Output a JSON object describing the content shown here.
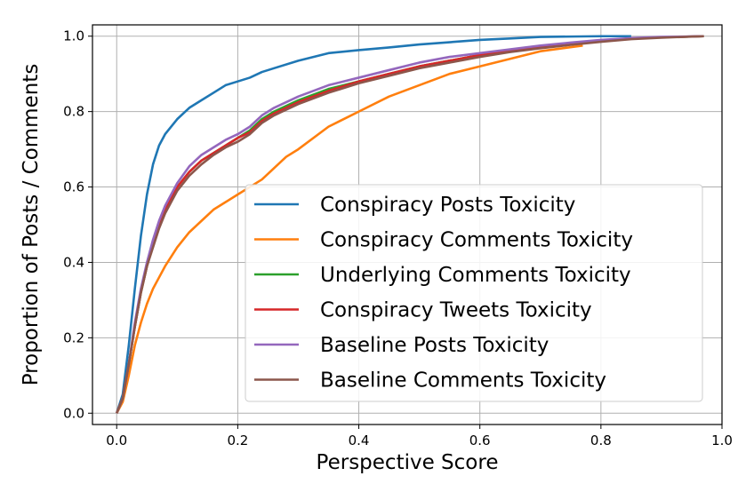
{
  "chart_data": {
    "type": "line",
    "title": "",
    "xlabel": "Perspective Score",
    "ylabel": "Proportion of Posts / Comments",
    "xlim": [
      -0.04,
      1.0
    ],
    "ylim": [
      -0.03,
      1.03
    ],
    "xticks": [
      "0.0",
      "0.2",
      "0.4",
      "0.6",
      "0.8",
      "1.0"
    ],
    "yticks": [
      "0.0",
      "0.2",
      "0.4",
      "0.6",
      "0.8",
      "1.0"
    ],
    "grid": true,
    "legend_position": "lower-right",
    "series": [
      {
        "name": "Conspiracy Posts Toxicity",
        "color": "#1f77b4",
        "x": [
          0.0,
          0.01,
          0.02,
          0.03,
          0.04,
          0.05,
          0.06,
          0.07,
          0.08,
          0.1,
          0.12,
          0.14,
          0.16,
          0.18,
          0.2,
          0.22,
          0.24,
          0.26,
          0.3,
          0.35,
          0.4,
          0.45,
          0.5,
          0.55,
          0.6,
          0.65,
          0.7,
          0.8,
          0.85
        ],
        "y": [
          0.0,
          0.05,
          0.18,
          0.33,
          0.47,
          0.58,
          0.66,
          0.71,
          0.74,
          0.78,
          0.81,
          0.83,
          0.85,
          0.87,
          0.88,
          0.89,
          0.905,
          0.915,
          0.935,
          0.955,
          0.963,
          0.97,
          0.978,
          0.984,
          0.99,
          0.994,
          0.998,
          1.0,
          1.0
        ]
      },
      {
        "name": "Conspiracy Comments Toxicity",
        "color": "#ff7f0e",
        "x": [
          0.0,
          0.01,
          0.02,
          0.03,
          0.04,
          0.05,
          0.06,
          0.07,
          0.08,
          0.1,
          0.12,
          0.14,
          0.16,
          0.18,
          0.2,
          0.22,
          0.24,
          0.26,
          0.28,
          0.3,
          0.35,
          0.4,
          0.45,
          0.5,
          0.55,
          0.6,
          0.65,
          0.7,
          0.77
        ],
        "y": [
          0.0,
          0.03,
          0.1,
          0.18,
          0.24,
          0.29,
          0.33,
          0.36,
          0.39,
          0.44,
          0.48,
          0.51,
          0.54,
          0.56,
          0.58,
          0.6,
          0.62,
          0.65,
          0.68,
          0.7,
          0.76,
          0.8,
          0.84,
          0.87,
          0.9,
          0.92,
          0.94,
          0.96,
          0.975
        ]
      },
      {
        "name": "Underlying Comments Toxicity",
        "color": "#2ca02c",
        "x": [
          0.0,
          0.01,
          0.02,
          0.03,
          0.04,
          0.05,
          0.06,
          0.07,
          0.08,
          0.1,
          0.12,
          0.14,
          0.16,
          0.18,
          0.2,
          0.22,
          0.24,
          0.26,
          0.3,
          0.35,
          0.4,
          0.45,
          0.5,
          0.55,
          0.6,
          0.65,
          0.7,
          0.75,
          0.8,
          0.85,
          0.9,
          0.97
        ],
        "y": [
          0.0,
          0.04,
          0.13,
          0.23,
          0.32,
          0.39,
          0.45,
          0.5,
          0.54,
          0.6,
          0.64,
          0.67,
          0.69,
          0.71,
          0.73,
          0.75,
          0.78,
          0.8,
          0.83,
          0.86,
          0.88,
          0.9,
          0.92,
          0.935,
          0.95,
          0.96,
          0.97,
          0.98,
          0.987,
          0.993,
          0.997,
          1.0
        ]
      },
      {
        "name": "Conspiracy Tweets Toxicity",
        "color": "#d62728",
        "x": [
          0.0,
          0.01,
          0.02,
          0.03,
          0.04,
          0.05,
          0.06,
          0.07,
          0.08,
          0.1,
          0.12,
          0.14,
          0.16,
          0.18,
          0.2,
          0.22,
          0.24,
          0.26,
          0.3,
          0.35,
          0.4,
          0.45,
          0.5,
          0.55,
          0.6,
          0.65,
          0.7,
          0.75,
          0.8,
          0.85,
          0.9,
          0.97
        ],
        "y": [
          0.0,
          0.04,
          0.13,
          0.23,
          0.32,
          0.39,
          0.45,
          0.5,
          0.54,
          0.6,
          0.64,
          0.67,
          0.69,
          0.71,
          0.73,
          0.745,
          0.775,
          0.795,
          0.825,
          0.855,
          0.88,
          0.9,
          0.92,
          0.935,
          0.95,
          0.96,
          0.97,
          0.98,
          0.987,
          0.993,
          0.997,
          1.0
        ]
      },
      {
        "name": "Baseline Posts Toxicity",
        "color": "#9467bd",
        "x": [
          0.0,
          0.01,
          0.02,
          0.03,
          0.04,
          0.05,
          0.06,
          0.07,
          0.08,
          0.1,
          0.12,
          0.14,
          0.16,
          0.18,
          0.2,
          0.22,
          0.24,
          0.26,
          0.3,
          0.35,
          0.4,
          0.45,
          0.5,
          0.55,
          0.6,
          0.65,
          0.7,
          0.75,
          0.8,
          0.85,
          0.9,
          0.97
        ],
        "y": [
          0.0,
          0.04,
          0.13,
          0.24,
          0.33,
          0.4,
          0.46,
          0.51,
          0.55,
          0.61,
          0.655,
          0.685,
          0.705,
          0.725,
          0.74,
          0.76,
          0.79,
          0.81,
          0.84,
          0.87,
          0.89,
          0.91,
          0.93,
          0.945,
          0.955,
          0.965,
          0.975,
          0.983,
          0.99,
          0.995,
          0.998,
          1.0
        ]
      },
      {
        "name": "Baseline Comments Toxicity",
        "color": "#8c564b",
        "x": [
          0.0,
          0.01,
          0.02,
          0.03,
          0.04,
          0.05,
          0.06,
          0.07,
          0.08,
          0.1,
          0.12,
          0.14,
          0.16,
          0.18,
          0.2,
          0.22,
          0.24,
          0.26,
          0.3,
          0.35,
          0.4,
          0.45,
          0.5,
          0.55,
          0.6,
          0.65,
          0.7,
          0.75,
          0.8,
          0.85,
          0.9,
          0.97
        ],
        "y": [
          0.0,
          0.04,
          0.13,
          0.23,
          0.32,
          0.39,
          0.44,
          0.49,
          0.53,
          0.59,
          0.63,
          0.66,
          0.685,
          0.705,
          0.72,
          0.74,
          0.77,
          0.79,
          0.82,
          0.85,
          0.875,
          0.895,
          0.915,
          0.93,
          0.945,
          0.958,
          0.968,
          0.977,
          0.985,
          0.992,
          0.996,
          1.0
        ]
      }
    ]
  }
}
